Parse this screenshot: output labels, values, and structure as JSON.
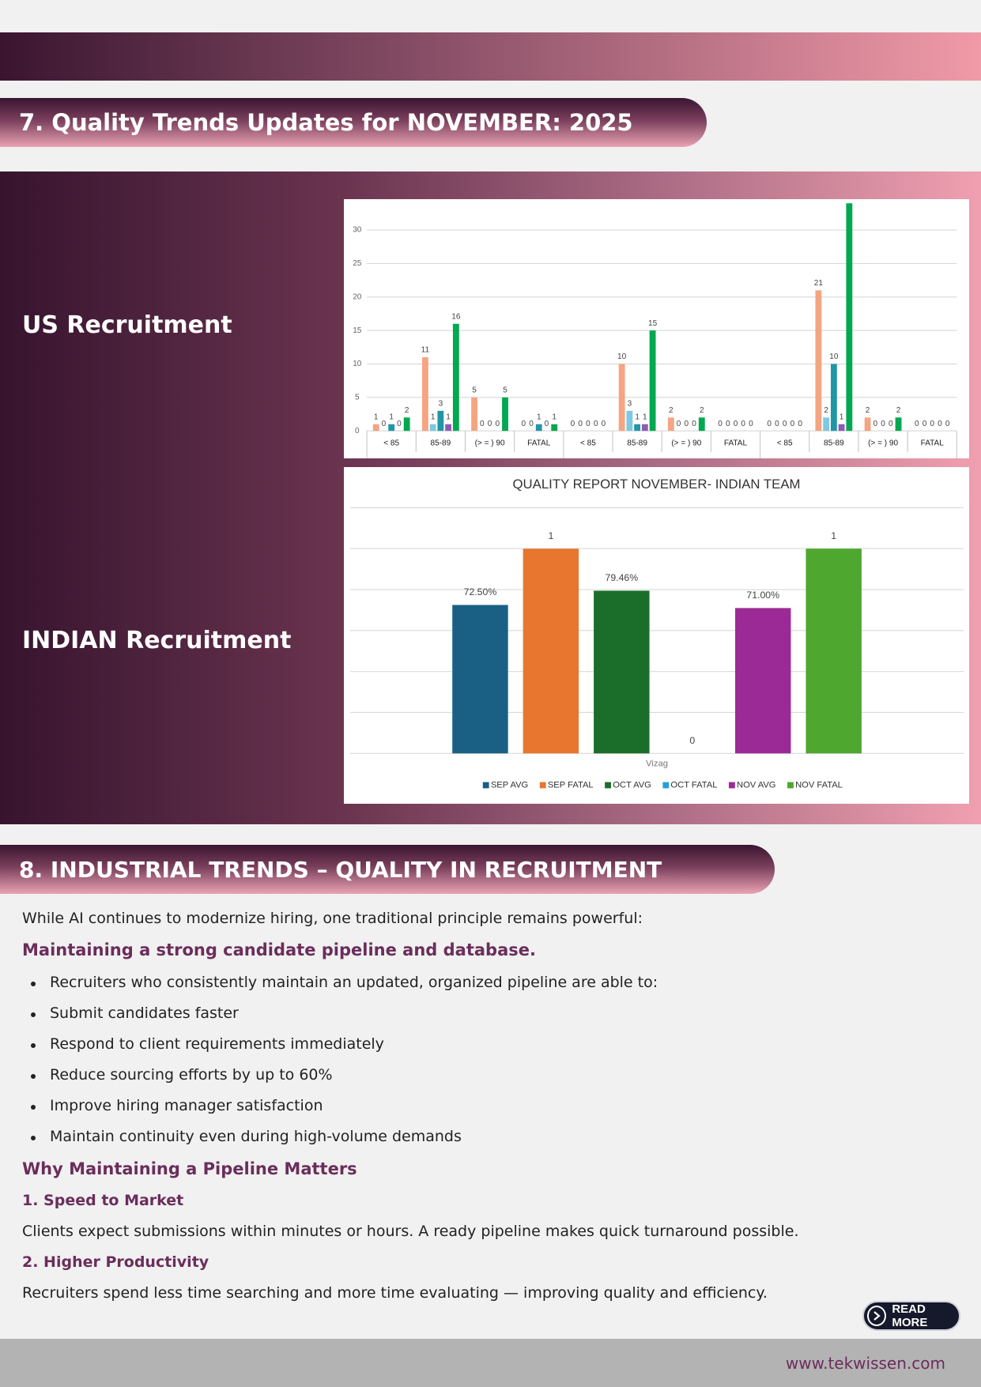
{
  "section_7": {
    "title": "7. Quality Trends Updates for NOVEMBER: 2025",
    "rows": [
      {
        "label": "US Recruitment"
      },
      {
        "label": "INDIAN Recruitment"
      }
    ]
  },
  "chart_data": [
    {
      "type": "bar",
      "categories": [
        "< 85",
        "85-89",
        "(> = ) 90",
        "FATAL",
        "< 85",
        "85-89",
        "(> = ) 90",
        "FATAL",
        "< 85",
        "85-89",
        "(> = ) 90",
        "FATAL"
      ],
      "series": [
        {
          "color": "#f4a582",
          "values": [
            1,
            11,
            5,
            0,
            0,
            10,
            2,
            0,
            0,
            21,
            2,
            0
          ]
        },
        {
          "color": "#7ec8e3",
          "values": [
            0,
            1,
            0,
            0,
            0,
            3,
            0,
            0,
            0,
            2,
            0,
            0
          ]
        },
        {
          "color": "#2196a6",
          "values": [
            1,
            3,
            0,
            1,
            0,
            1,
            0,
            0,
            0,
            10,
            0,
            0
          ]
        },
        {
          "color": "#8e5bb5",
          "values": [
            0,
            1,
            0,
            0,
            0,
            1,
            0,
            0,
            0,
            1,
            0,
            0
          ]
        },
        {
          "color": "#00a84f",
          "values": [
            2,
            16,
            5,
            1,
            0,
            15,
            2,
            0,
            0,
            34,
            2,
            0
          ]
        }
      ],
      "ylim": [
        0,
        35
      ],
      "yticks": [
        0,
        5,
        10,
        15,
        20,
        25,
        30
      ],
      "grid": true
    },
    {
      "type": "bar",
      "title": "QUALITY REPORT NOVEMBER- INDIAN TEAM",
      "categories": [
        "Vizag"
      ],
      "series": [
        {
          "name": "SEP AVG",
          "color": "#1a5f84",
          "values": [
            0.725
          ],
          "value_labels": [
            "72.50%"
          ]
        },
        {
          "name": "SEP FATAL",
          "color": "#e8762f",
          "values": [
            1
          ]
        },
        {
          "name": "OCT AVG",
          "color": "#1a6e2a",
          "values": [
            0.7946
          ],
          "value_labels": [
            "79.46%"
          ]
        },
        {
          "name": "OCT FATAL",
          "color": "#25a0d8",
          "values": [
            0
          ]
        },
        {
          "name": "NOV AVG",
          "color": "#9c2a96",
          "values": [
            0.71
          ],
          "value_labels": [
            "71.00%"
          ]
        },
        {
          "name": "NOV FATAL",
          "color": "#4ea72e",
          "values": [
            1
          ]
        }
      ],
      "ylim": [
        0,
        1.2
      ],
      "yticks": [
        0,
        0.2,
        0.4,
        0.6,
        0.8,
        1,
        1.2
      ],
      "tick_labels": false,
      "grid": true,
      "legend": "bottom"
    }
  ],
  "section_8": {
    "title": "8. INDUSTRIAL TRENDS – QUALITY IN RECRUITMENT",
    "intro": "While AI continues to modernize hiring, one traditional principle remains powerful:",
    "highlight": "Maintaining a strong candidate pipeline and database.",
    "bullets": [
      "Recruiters who consistently maintain an updated, organized pipeline are able to:",
      "Submit candidates faster",
      "Respond to client requirements immediately",
      "Reduce sourcing efforts by up to 60%",
      "Improve hiring manager satisfaction",
      "Maintain continuity even during high-volume demands"
    ],
    "subheading": "Why Maintaining a Pipeline Matters",
    "points": [
      {
        "heading": "1. Speed to Market",
        "text": "Clients expect submissions within minutes or hours. A ready pipeline makes quick turnaround possible."
      },
      {
        "heading": "2. Higher Productivity",
        "text": "Recruiters spend less time searching and more time evaluating — improving quality and efficiency."
      }
    ]
  },
  "read_more": "READ MORE",
  "footer": {
    "website": "www.tekwissen.com"
  }
}
